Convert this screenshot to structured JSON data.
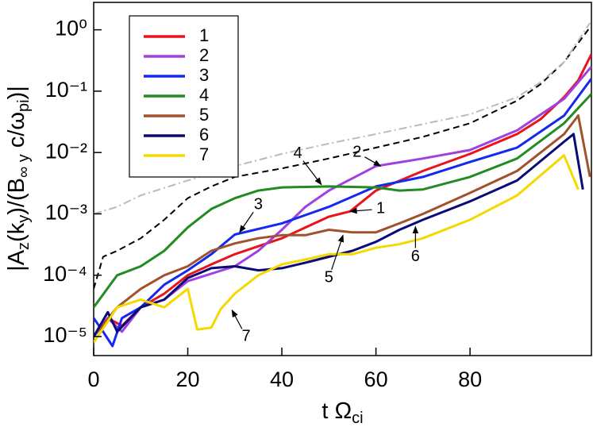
{
  "chart_data": {
    "type": "line",
    "yscale": "log",
    "xlim": [
      0,
      105.8
    ],
    "ylim": [
      4.9e-06,
      2.8
    ],
    "xticks": [
      0,
      20,
      40,
      60,
      80
    ],
    "yticks": [
      {
        "value": 1,
        "label": "10⁰"
      },
      {
        "value": 0.1,
        "label": "10⁻¹"
      },
      {
        "value": 0.01,
        "label": "10⁻²"
      },
      {
        "value": 0.001,
        "label": "10⁻³"
      },
      {
        "value": 0.0001,
        "label": "10⁻⁴"
      },
      {
        "value": 1e-05,
        "label": "10⁻⁵"
      }
    ],
    "xlabel_parts": [
      "t Ω",
      "ci"
    ],
    "ylabel_parts": [
      "|A",
      "z",
      "(k",
      "y",
      ")/(B",
      "∞ y",
      " c/ω",
      "pi",
      ")|"
    ],
    "legend": "upper left",
    "series": [
      {
        "name": "1",
        "color": "#e8141b",
        "dash": "solid",
        "x": [
          0,
          3,
          6,
          10,
          15,
          20,
          25,
          30,
          40,
          50,
          54.5,
          60,
          70,
          80,
          90,
          95,
          100,
          103,
          105.8
        ],
        "values": [
          1e-05,
          2e-05,
          1.5e-05,
          3e-05,
          5e-05,
          0.0001,
          0.00015,
          0.00022,
          0.0004,
          0.0009,
          0.0011,
          0.0024,
          0.005,
          0.0095,
          0.02,
          0.035,
          0.08,
          0.15,
          0.4
        ]
      },
      {
        "name": "2",
        "color": "#a040e0",
        "dash": "solid",
        "x": [
          0,
          3,
          6,
          10,
          15,
          20,
          30,
          35,
          40,
          45,
          50,
          60,
          70,
          80,
          90,
          100,
          105.8
        ],
        "values": [
          1e-05,
          2e-05,
          1.2e-05,
          3e-05,
          4e-05,
          8e-05,
          0.00014,
          0.00025,
          0.00055,
          0.0013,
          0.0024,
          0.006,
          0.008,
          0.011,
          0.023,
          0.075,
          0.25
        ]
      },
      {
        "name": "3",
        "color": "#1428f0",
        "dash": "solid",
        "x": [
          0,
          2,
          4,
          6,
          10,
          15,
          20,
          25,
          30,
          40,
          50,
          60,
          70,
          80,
          90,
          100,
          105.8
        ],
        "values": [
          2e-05,
          1.2e-05,
          7e-06,
          2e-05,
          3e-05,
          7e-05,
          0.00012,
          0.00022,
          0.00046,
          0.0007,
          0.0013,
          0.0028,
          0.004,
          0.007,
          0.012,
          0.04,
          0.16
        ]
      },
      {
        "name": "4",
        "color": "#228b22",
        "dash": "solid",
        "x": [
          0,
          5,
          10,
          15,
          20,
          25,
          30,
          35,
          40,
          50,
          60,
          65,
          70,
          80,
          90,
          100,
          105.8
        ],
        "values": [
          3e-05,
          0.0001,
          0.00014,
          0.00025,
          0.0006,
          0.0012,
          0.0018,
          0.0024,
          0.0027,
          0.0028,
          0.0027,
          0.0024,
          0.0025,
          0.004,
          0.008,
          0.03,
          0.09
        ]
      },
      {
        "name": "5",
        "color": "#a0522d",
        "dash": "solid",
        "x": [
          0,
          5,
          10,
          15,
          20,
          25,
          30,
          35,
          40,
          45,
          50,
          55,
          60,
          65,
          70,
          80,
          90,
          100,
          103,
          105.5
        ],
        "values": [
          1e-05,
          3e-05,
          6e-05,
          0.0001,
          0.00014,
          0.00025,
          0.00033,
          0.0004,
          0.00045,
          0.00045,
          0.00055,
          0.0005,
          0.0005,
          0.0007,
          0.001,
          0.0022,
          0.005,
          0.02,
          0.04,
          0.004
        ]
      },
      {
        "name": "6",
        "color": "#0a0a78",
        "dash": "solid",
        "x": [
          0,
          3,
          5,
          10,
          15,
          20,
          25,
          30,
          35,
          40,
          45,
          50,
          55,
          60,
          65,
          70,
          80,
          90,
          100,
          102,
          104
        ],
        "values": [
          1e-05,
          2.5e-05,
          1.2e-05,
          3e-05,
          4e-05,
          9e-05,
          0.00013,
          0.00014,
          0.00012,
          0.00013,
          0.00016,
          0.0002,
          0.00025,
          0.00035,
          0.00055,
          0.0008,
          0.0016,
          0.0035,
          0.015,
          0.02,
          0.0025
        ]
      },
      {
        "name": "7",
        "color": "#f5d800",
        "dash": "solid",
        "x": [
          0,
          5,
          10,
          15,
          20,
          22,
          25,
          27,
          30,
          35,
          40,
          45,
          50,
          55,
          60,
          65,
          70,
          80,
          90,
          100,
          103
        ],
        "values": [
          8e-06,
          3e-05,
          4e-05,
          3e-05,
          6e-05,
          1.3e-05,
          1.4e-05,
          2.8e-05,
          5e-05,
          0.0001,
          0.00015,
          0.00018,
          0.00022,
          0.00022,
          0.00028,
          0.00032,
          0.0004,
          0.0008,
          0.002,
          0.009,
          0.0025
        ]
      },
      {
        "color": "#000000",
        "dash": "dashed",
        "x": [
          0,
          2,
          5,
          10,
          15,
          20,
          25,
          30,
          40,
          50,
          60,
          70,
          80,
          90,
          95,
          100,
          105.5
        ],
        "values": [
          6e-05,
          0.0002,
          0.00025,
          0.0004,
          0.0008,
          0.0018,
          0.0028,
          0.004,
          0.0055,
          0.008,
          0.012,
          0.018,
          0.03,
          0.07,
          0.13,
          0.3,
          1.1
        ]
      },
      {
        "color": "#bbbbbb",
        "dash": "dashdot",
        "x": [
          0,
          5,
          10,
          20,
          30,
          40,
          50,
          60,
          70,
          80,
          90,
          95,
          100,
          105.5
        ],
        "values": [
          0.001,
          0.0013,
          0.002,
          0.0035,
          0.006,
          0.0095,
          0.014,
          0.02,
          0.029,
          0.042,
          0.08,
          0.14,
          0.3,
          1.3
        ]
      }
    ],
    "annotations": [
      {
        "text": "1",
        "xy": [
          54.5,
          0.0011
        ],
        "xytext": [
          61,
          0.0012
        ]
      },
      {
        "text": "2",
        "xy": [
          61,
          0.006
        ],
        "xytext": [
          56,
          0.01
        ]
      },
      {
        "text": "3",
        "xy": [
          31,
          0.0005
        ],
        "xytext": [
          35,
          0.0014
        ]
      },
      {
        "text": "4",
        "xy": [
          48.4,
          0.003
        ],
        "xytext": [
          43.4,
          0.0095
        ]
      },
      {
        "text": "5",
        "xy": [
          53,
          0.00045
        ],
        "xytext": [
          50,
          9e-05
        ]
      },
      {
        "text": "6",
        "xy": [
          68.4,
          0.00062
        ],
        "xytext": [
          68.4,
          0.0002
        ]
      },
      {
        "text": "7",
        "xy": [
          29.4,
          2.7e-05
        ],
        "xytext": [
          32.4,
          1e-05
        ]
      }
    ]
  }
}
